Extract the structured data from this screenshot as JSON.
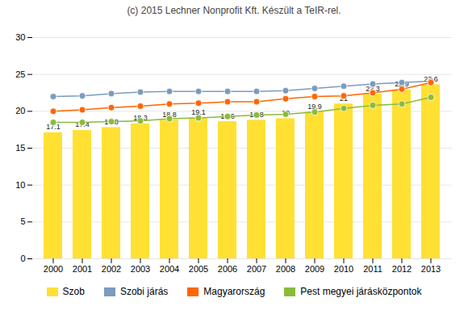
{
  "chart_data": {
    "type": "bar",
    "title": "(c) 2015 Lechner Nonprofit Kft. Készült a TeIR-rel.",
    "categories": [
      "2000",
      "2001",
      "2002",
      "2003",
      "2004",
      "2005",
      "2006",
      "2007",
      "2008",
      "2009",
      "2010",
      "2011",
      "2012",
      "2013"
    ],
    "series": [
      {
        "name": "Szob",
        "type": "bar",
        "color": "#FFE033",
        "data_labels": true,
        "values": [
          17.1,
          17.4,
          17.8,
          18.3,
          18.8,
          19.1,
          18.6,
          18.8,
          19.0,
          19.9,
          21.0,
          22.3,
          22.9,
          23.6
        ]
      },
      {
        "name": "Szobi járás",
        "type": "line",
        "color": "#7B9BBF",
        "marker": "circle",
        "values": [
          22.0,
          22.1,
          22.4,
          22.6,
          22.7,
          22.7,
          22.7,
          22.7,
          22.8,
          23.1,
          23.4,
          23.7,
          23.9,
          24.1
        ]
      },
      {
        "name": "Magyarország",
        "type": "line",
        "color": "#FF6600",
        "marker": "circle",
        "values": [
          20.0,
          20.2,
          20.5,
          20.7,
          21.0,
          21.1,
          21.3,
          21.3,
          21.7,
          22.0,
          22.1,
          22.5,
          23.0,
          23.9
        ]
      },
      {
        "name": "Pest megyei járásközpontok",
        "type": "line",
        "color": "#8BBB3A",
        "marker": "circle",
        "values": [
          18.5,
          18.5,
          18.6,
          18.7,
          19.0,
          19.1,
          19.3,
          19.5,
          19.6,
          19.9,
          20.4,
          20.8,
          21.0,
          21.9
        ]
      }
    ],
    "ylim": [
      0,
      30
    ],
    "yticks": [
      0,
      5,
      10,
      15,
      20,
      25,
      30
    ],
    "grid": true,
    "legend": "bottom"
  }
}
